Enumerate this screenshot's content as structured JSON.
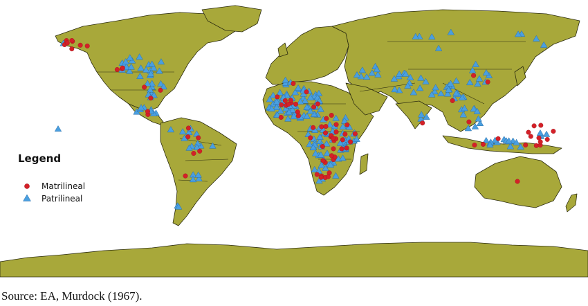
{
  "legend": {
    "title": "Legend",
    "items": [
      {
        "label": "Matrilineal",
        "symbol": "circle",
        "color": "#d42028"
      },
      {
        "label": "Patrilineal",
        "symbol": "triangle",
        "color": "#4a9fe0"
      }
    ]
  },
  "source": "Source: EA, Murdock (1967).",
  "colors": {
    "land": "#a8a83a",
    "borders": "#2c2c10",
    "background": "#ffffff"
  }
}
